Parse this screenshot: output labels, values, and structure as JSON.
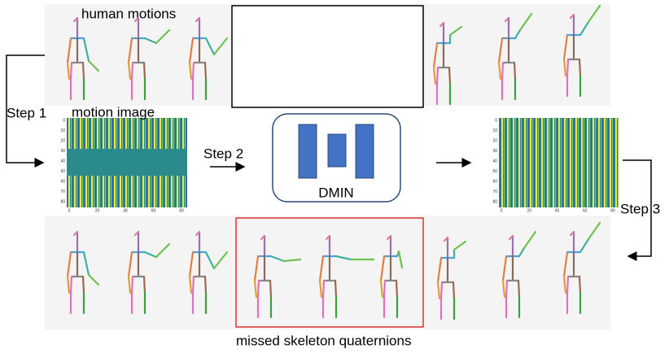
{
  "labels": {
    "human_motions": "human motions",
    "motion_image": "motion image",
    "step1": "Step 1",
    "step2": "Step 2",
    "step3": "Step 3",
    "model": "DMIN",
    "missed": "missed skeleton quaternions"
  },
  "motion_images": [
    {
      "y_ticks": [
        "0",
        "10",
        "20",
        "30",
        "40",
        "50",
        "60",
        "70",
        "80"
      ],
      "x_ticks": [
        "0",
        "20",
        "40",
        "60",
        "80"
      ]
    },
    {
      "y_ticks": [
        "0",
        "10",
        "20",
        "30",
        "40",
        "50",
        "60",
        "70",
        "80"
      ],
      "x_ticks": [
        "0",
        "20",
        "40",
        "60",
        "80"
      ]
    }
  ]
}
